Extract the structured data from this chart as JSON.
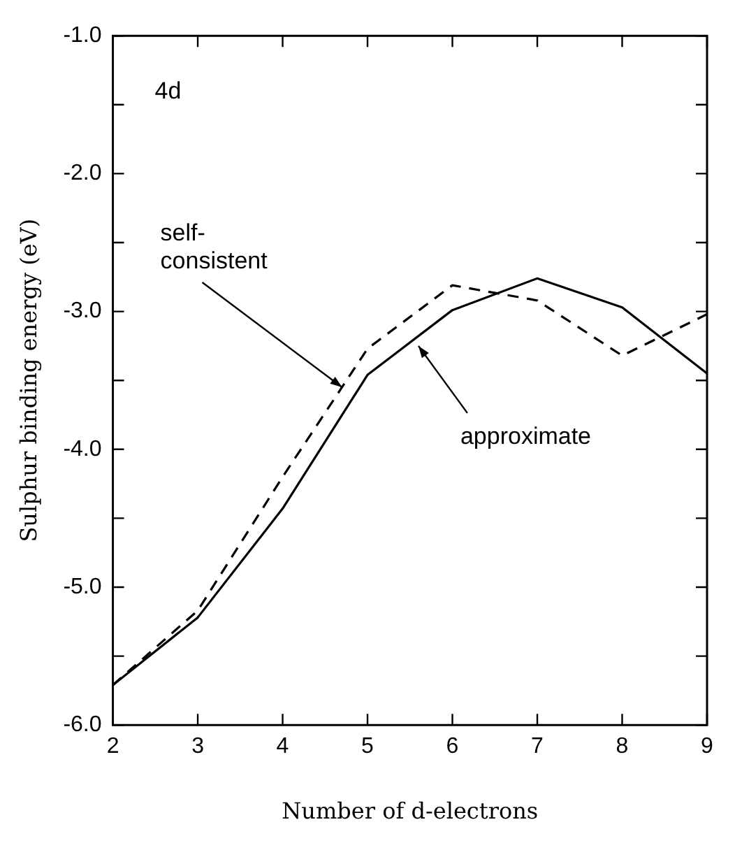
{
  "chart_data": {
    "type": "line",
    "xlabel": "Number of d-electrons",
    "ylabel": "Sulphur binding energy (eV)",
    "x": [
      2,
      3,
      4,
      5,
      6,
      7,
      8,
      9
    ],
    "series": [
      {
        "color": "#000000",
        "line_style": "solid",
        "values": [
          -5.71,
          -5.22,
          -4.43,
          -3.46,
          -2.99,
          -2.76,
          -2.97,
          -3.45
        ]
      },
      {
        "color": "#000000",
        "line_style": "dashed",
        "values": [
          -5.71,
          -5.17,
          -4.2,
          -3.27,
          -2.81,
          -2.92,
          -3.32,
          -3.02
        ]
      }
    ],
    "xlim": [
      2,
      9
    ],
    "xticks": [
      2,
      3,
      4,
      5,
      6,
      7,
      8,
      9
    ],
    "ylim": [
      -6,
      -1
    ],
    "yticks": [
      {
        "value": -6,
        "label": "-6.0"
      },
      {
        "value": -5.5,
        "label": null
      },
      {
        "value": -5,
        "label": "-5.0"
      },
      {
        "value": -4.5,
        "label": null
      },
      {
        "value": -4,
        "label": "-4.0"
      },
      {
        "value": -3.5,
        "label": null
      },
      {
        "value": -3,
        "label": "-3.0"
      },
      {
        "value": -2.5,
        "label": null
      },
      {
        "value": -2,
        "label": "-2.0"
      },
      {
        "value": -1.5,
        "label": null
      },
      {
        "value": -1,
        "label": "-1.0"
      }
    ],
    "grid": false,
    "legend": false,
    "marker": "none",
    "annotations": [
      "4d",
      {
        "text": "self-consistent",
        "x": 4.7,
        "y": -3.55
      },
      {
        "text": "approximate",
        "x": 5.6,
        "y": -3.25
      }
    ]
  }
}
